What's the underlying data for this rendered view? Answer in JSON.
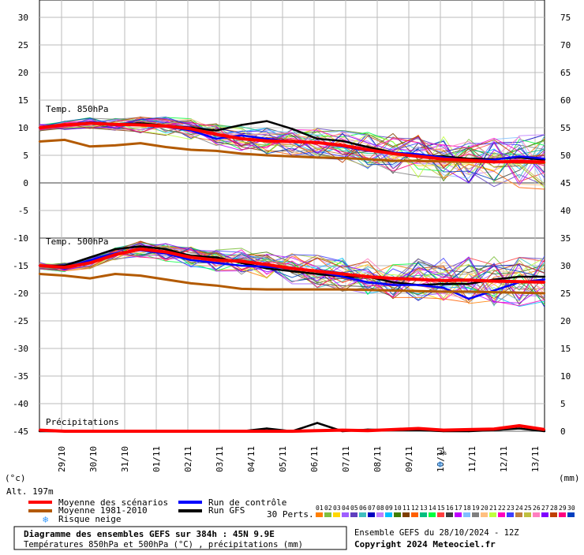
{
  "chart_data": {
    "type": "line",
    "title": "Diagramme des ensembles GEFS sur 384h : 45N 9.9E",
    "subtitle": "Températures 850hPa et 500hPa (°C) , précipitations (mm)",
    "run_info": "Ensemble GEFS du 28/10/2024 - 12Z",
    "copyright": "Copyright 2024 Meteociel.fr",
    "altitude_label": "Alt. 197m",
    "left_unit": "(°c)",
    "right_unit": "(mm)",
    "panel_labels": {
      "t850": "Temp. 850hPa",
      "t500": "Temp. 500hPa",
      "precip": "Précipitations"
    },
    "snow_risk_label": "3%",
    "x_ticks": [
      "29/10",
      "30/10",
      "31/10",
      "01/11",
      "02/11",
      "03/11",
      "04/11",
      "05/11",
      "06/11",
      "07/11",
      "08/11",
      "09/11",
      "10/11",
      "11/11",
      "12/11",
      "13/11"
    ],
    "left_ticks": [
      "30",
      "25",
      "20",
      "15",
      "10",
      "5",
      "0",
      "-5",
      "-10",
      "-15",
      "-20",
      "-25",
      "-30",
      "-35",
      "-40",
      "-45"
    ],
    "right_ticks": [
      "75",
      "70",
      "65",
      "60",
      "55",
      "50",
      "45",
      "40",
      "35",
      "30",
      "25",
      "20",
      "15",
      "10",
      "5",
      "0"
    ],
    "ylim_left": [
      -45,
      30
    ],
    "ylim_right": [
      0,
      75
    ],
    "legend": {
      "mean": "Moyenne des scénarios",
      "climo": "Moyenne 1981-2010",
      "snow": "Risque neige",
      "control": "Run de contrôle",
      "gfs": "Run GFS",
      "perts_label": "30 Perts.",
      "perts": [
        "01",
        "02",
        "03",
        "04",
        "05",
        "06",
        "07",
        "08",
        "09",
        "10",
        "11",
        "12",
        "13",
        "14",
        "15",
        "16",
        "17",
        "18",
        "19",
        "20",
        "21",
        "22",
        "23",
        "24",
        "25",
        "26",
        "27",
        "28",
        "29",
        "30"
      ]
    },
    "colors": {
      "mean": "#ff0000",
      "climo": "#b35a00",
      "control": "#0000ff",
      "gfs": "#000000",
      "perts": [
        "#ff7f00",
        "#7fbf3f",
        "#ffd700",
        "#9f5fff",
        "#5f3fbf",
        "#3fbfbf",
        "#0000bf",
        "#bf7fff",
        "#00bfff",
        "#3f7f00",
        "#7f3f00",
        "#ff5f00",
        "#00bf7f",
        "#00ff3f",
        "#ff3f3f",
        "#3f3f3f",
        "#bf00ff",
        "#7fbfff",
        "#7f7f7f",
        "#ffbf7f",
        "#bfff3f",
        "#ff00bf",
        "#3f3fff",
        "#bf7f3f",
        "#bfbf3f",
        "#ff7fbf",
        "#7f00ff",
        "#bf3f00",
        "#ff007f",
        "#003fbf"
      ]
    },
    "series": [
      {
        "name": "Moyenne des scénarios",
        "panel": "t850",
        "values": [
          10,
          10.5,
          10.8,
          10.6,
          10.5,
          10.3,
          9.8,
          8.8,
          8,
          7.6,
          7.5,
          7.3,
          6.8,
          6,
          5.3,
          4.8,
          4.3,
          4.1,
          3.8,
          3.9,
          3.8
        ]
      },
      {
        "name": "Moyenne 1981-2010",
        "panel": "t850",
        "values": [
          7.5,
          7.8,
          6.6,
          6.8,
          7.2,
          6.5,
          6,
          5.8,
          5.3,
          5,
          4.8,
          4.6,
          4.5,
          4.3,
          4,
          4,
          3.9,
          3.8,
          3.8,
          3.7,
          3.6
        ]
      },
      {
        "name": "Run de contrôle",
        "panel": "t850",
        "values": [
          10,
          10.4,
          11,
          10.5,
          10.6,
          10.2,
          9.5,
          8,
          8.6,
          8,
          7.5,
          7.3,
          6.6,
          5.8,
          5.5,
          5.2,
          4.6,
          4.1,
          4.2,
          4.8,
          4.4
        ]
      },
      {
        "name": "Run GFS",
        "panel": "t850",
        "values": [
          10,
          10.5,
          11,
          10.6,
          10.8,
          10.4,
          10,
          9.5,
          10.5,
          11.2,
          9.8,
          8,
          7.6,
          6.5,
          5.5,
          5,
          4.8,
          4.4,
          4.3,
          4.6,
          4.2
        ]
      },
      {
        "name": "Moyenne des scénarios",
        "panel": "t500",
        "values": [
          -15,
          -15.3,
          -14.5,
          -13,
          -12,
          -12.5,
          -13.5,
          -14,
          -14.2,
          -14.8,
          -15.5,
          -16,
          -16.5,
          -17,
          -17.3,
          -17.5,
          -17.7,
          -17.6,
          -17.8,
          -17.9,
          -18
        ]
      },
      {
        "name": "Moyenne 1981-2010",
        "panel": "t500",
        "values": [
          -16.5,
          -16.8,
          -17.3,
          -16.5,
          -16.8,
          -17.5,
          -18.2,
          -18.6,
          -19.2,
          -19.3,
          -19.3,
          -19.3,
          -19.3,
          -19.4,
          -19.5,
          -19.6,
          -19.7,
          -19.7,
          -19.8,
          -19.9,
          -20
        ]
      },
      {
        "name": "Run de contrôle",
        "panel": "t500",
        "values": [
          -15,
          -15.5,
          -14,
          -12.8,
          -12.2,
          -12.8,
          -14,
          -14.5,
          -15,
          -15.2,
          -15.5,
          -16,
          -17,
          -18,
          -18.5,
          -18.5,
          -19,
          -21,
          -19.5,
          -18,
          -17.5
        ]
      },
      {
        "name": "Run GFS",
        "panel": "t500",
        "values": [
          -15,
          -15,
          -13.5,
          -12,
          -11.5,
          -12,
          -13.2,
          -13.5,
          -14.5,
          -15.5,
          -16,
          -16.5,
          -17,
          -17,
          -18,
          -18.5,
          -18.3,
          -18.3,
          -17.5,
          -17,
          -17
        ]
      },
      {
        "name": "Moyenne des scénarios",
        "panel": "precip",
        "values": [
          0.2,
          0,
          0,
          0,
          0,
          0,
          0,
          0,
          0,
          0,
          0,
          0.1,
          0.2,
          0.1,
          0.3,
          0.5,
          0.2,
          0.3,
          0.4,
          1,
          0.3
        ]
      },
      {
        "name": "Run GFS",
        "panel": "precip",
        "values": [
          0,
          0,
          0,
          0,
          0,
          0,
          0,
          0,
          0,
          0.5,
          0,
          1.5,
          0,
          0.3,
          0.2,
          0.2,
          0,
          0,
          0.2,
          0.5,
          0
        ]
      }
    ]
  }
}
